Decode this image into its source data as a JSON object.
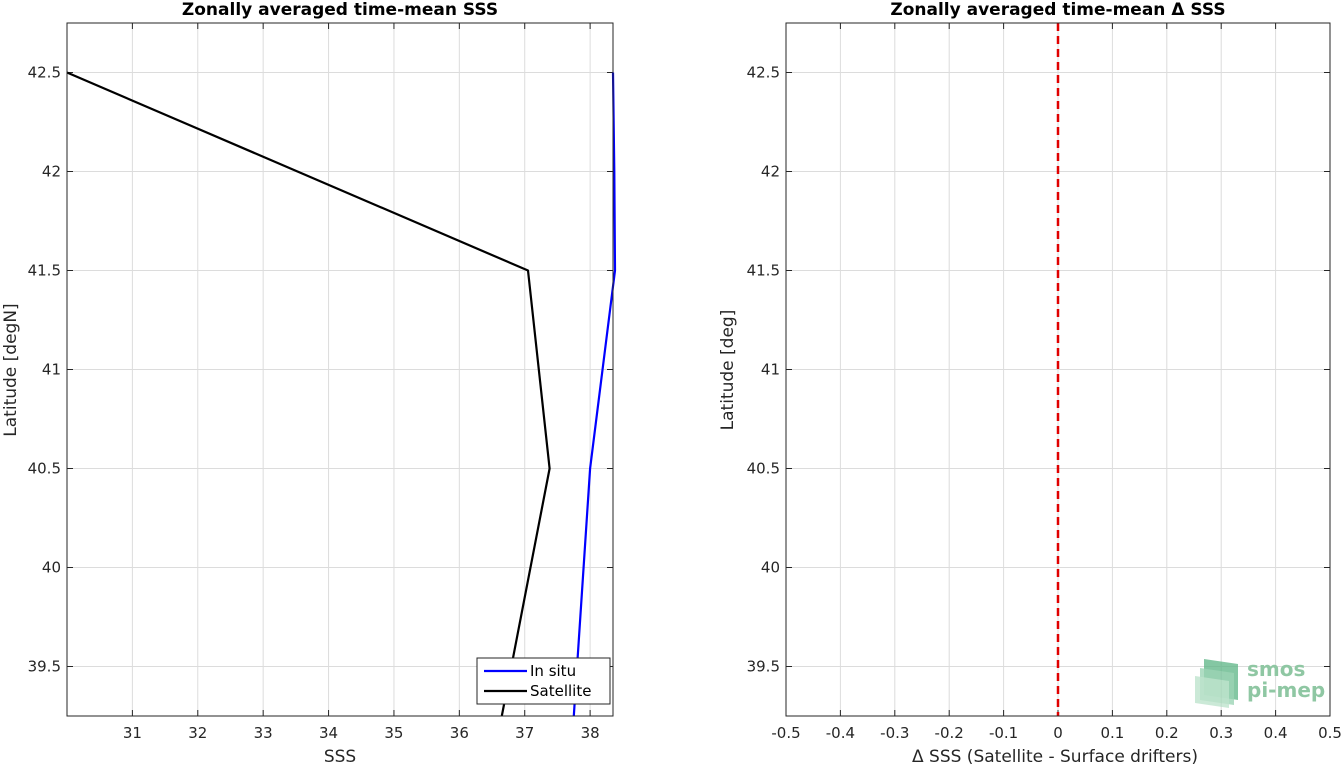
{
  "chart_data": [
    {
      "type": "line",
      "title": "Zonally averaged time-mean SSS",
      "xlabel": "SSS",
      "ylabel": "Latitude [degN]",
      "xlim": [
        30.0,
        38.35
      ],
      "ylim": [
        39.25,
        42.75
      ],
      "xticks": [
        31,
        32,
        33,
        34,
        35,
        36,
        37,
        38
      ],
      "yticks": [
        39.5,
        40,
        40.5,
        41,
        41.5,
        42,
        42.5
      ],
      "grid": true,
      "legend_position": "bottom-right",
      "series": [
        {
          "name": "In situ",
          "color": "#0000ff",
          "x": [
            37.75,
            38.0,
            38.38,
            38.37,
            38.35
          ],
          "y": [
            39.25,
            40.5,
            41.5,
            42.0,
            42.5
          ]
        },
        {
          "name": "Satellite",
          "color": "#000000",
          "x": [
            36.65,
            37.38,
            37.05,
            30.0
          ],
          "y": [
            39.25,
            40.5,
            41.5,
            42.5
          ]
        }
      ]
    },
    {
      "type": "line",
      "title": "Zonally averaged time-mean Δ SSS",
      "xlabel": "Δ SSS (Satellite - Surface drifters)",
      "ylabel": "Latitude [deg]",
      "xlim": [
        -0.5,
        0.5
      ],
      "ylim": [
        39.25,
        42.75
      ],
      "xticks": [
        -0.5,
        -0.4,
        -0.3,
        -0.2,
        -0.1,
        0,
        0.1,
        0.2,
        0.3,
        0.4,
        0.5
      ],
      "yticks": [
        39.5,
        40,
        40.5,
        41,
        41.5,
        42,
        42.5
      ],
      "grid": true,
      "reference_line": {
        "x": 0,
        "color": "#e00000",
        "style": "dashed"
      },
      "series": []
    }
  ],
  "logo": {
    "line1": "smos",
    "line2": "pi-mep"
  }
}
